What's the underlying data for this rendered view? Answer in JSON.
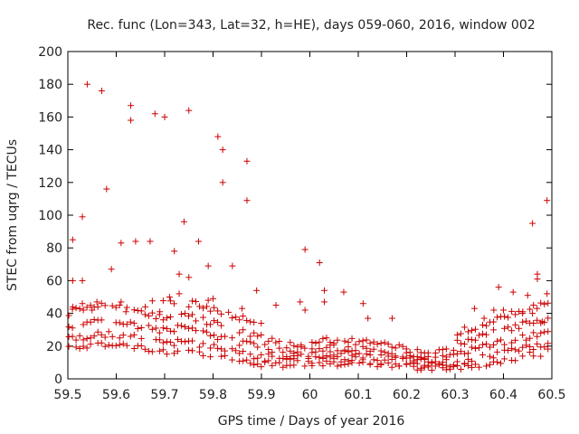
{
  "chart_data": {
    "type": "scatter",
    "title": "Rec. func (Lon=343, Lat=32, h=HE), days 059-060, 2016, window 002",
    "xlabel": "GPS time / Days of year 2016",
    "ylabel": "STEC from uqrg / TECUs",
    "xlim": [
      59.5,
      60.5
    ],
    "ylim": [
      0,
      200
    ],
    "xticks": [
      59.5,
      59.6,
      59.7,
      59.8,
      59.9,
      60.0,
      60.1,
      60.2,
      60.3,
      60.4,
      60.5
    ],
    "xtick_labels": [
      "59.5",
      "59.6",
      "59.7",
      "59.8",
      "59.9",
      "60",
      "60.1",
      "60.2",
      "60.3",
      "60.4",
      "60.5"
    ],
    "yticks": [
      0,
      20,
      40,
      60,
      80,
      100,
      120,
      140,
      160,
      180,
      200
    ],
    "ytick_labels": [
      "0",
      "20",
      "40",
      "60",
      "80",
      "100",
      "120",
      "140",
      "160",
      "180",
      "200"
    ],
    "grid": false,
    "marker": "+",
    "marker_color": "#cc0000",
    "series": [
      {
        "name": "STEC",
        "points": [
          [
            59.54,
            180
          ],
          [
            59.57,
            176
          ],
          [
            59.63,
            167
          ],
          [
            59.63,
            158
          ],
          [
            59.68,
            162
          ],
          [
            59.7,
            160
          ],
          [
            59.75,
            164
          ],
          [
            59.81,
            148
          ],
          [
            59.82,
            140
          ],
          [
            59.87,
            133
          ],
          [
            59.82,
            120
          ],
          [
            59.87,
            109
          ],
          [
            59.58,
            116
          ],
          [
            59.53,
            99
          ],
          [
            59.74,
            96
          ],
          [
            60.46,
            95
          ],
          [
            60.49,
            109
          ],
          [
            59.51,
            85
          ],
          [
            59.61,
            83
          ],
          [
            59.64,
            84
          ],
          [
            59.67,
            84
          ],
          [
            59.77,
            84
          ],
          [
            59.72,
            78
          ],
          [
            59.99,
            79
          ],
          [
            60.02,
            71
          ],
          [
            59.79,
            69
          ],
          [
            59.84,
            69
          ],
          [
            59.59,
            67
          ],
          [
            59.53,
            60
          ],
          [
            59.51,
            60
          ],
          [
            59.73,
            64
          ],
          [
            60.47,
            64
          ],
          [
            60.47,
            61
          ],
          [
            59.75,
            62
          ],
          [
            60.03,
            54
          ],
          [
            60.07,
            53
          ],
          [
            59.89,
            54
          ],
          [
            60.39,
            56
          ],
          [
            60.42,
            53
          ],
          [
            60.45,
            51
          ],
          [
            60.49,
            52
          ],
          [
            59.51,
            44
          ],
          [
            59.53,
            46
          ],
          [
            59.55,
            42
          ],
          [
            59.56,
            47
          ],
          [
            59.61,
            47
          ],
          [
            59.62,
            41
          ],
          [
            59.66,
            44
          ],
          [
            59.69,
            41
          ],
          [
            59.71,
            50
          ],
          [
            59.73,
            52
          ],
          [
            59.75,
            44
          ],
          [
            59.79,
            48
          ],
          [
            59.8,
            49
          ],
          [
            59.86,
            43
          ],
          [
            59.93,
            45
          ],
          [
            59.98,
            47
          ],
          [
            59.99,
            42
          ],
          [
            60.03,
            47
          ],
          [
            60.11,
            46
          ],
          [
            60.12,
            37
          ],
          [
            60.17,
            37
          ],
          [
            60.34,
            43
          ],
          [
            60.36,
            37
          ],
          [
            60.38,
            42
          ],
          [
            60.4,
            42
          ],
          [
            60.44,
            41
          ],
          [
            60.46,
            40
          ],
          [
            60.48,
            35
          ]
        ]
      }
    ]
  }
}
